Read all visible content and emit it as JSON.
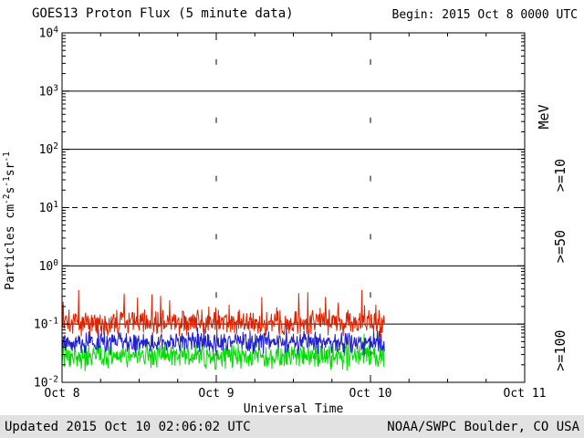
{
  "header": {
    "title": "GOES13 Proton Flux (5 minute data)",
    "begin": "Begin: 2015 Oct 8 0000 UTC"
  },
  "footer": {
    "updated": "Updated 2015 Oct 10 02:06:02 UTC",
    "source": "NOAA/SWPC Boulder, CO USA"
  },
  "chart_data": {
    "type": "line",
    "title": "GOES13 Proton Flux (5 minute data)",
    "xlabel": "Universal Time",
    "ylabel_parts": [
      "Particles  cm",
      "-2",
      "s",
      "-1",
      "sr",
      "-1"
    ],
    "units_label": "MeV",
    "x_axis": {
      "days": 3,
      "tick_labels": [
        "Oct 8",
        "Oct 9",
        "Oct 10",
        "Oct 11"
      ],
      "minor_tick_hours": 6
    },
    "y_axis": {
      "log_min": -2,
      "log_max": 4,
      "tick_exponents": [
        "4",
        "3",
        "2",
        "1",
        "0",
        "-1",
        "-2"
      ]
    },
    "hlines": {
      "solid_exponents": [
        3,
        2,
        0,
        -1
      ],
      "dashed_exponents": [
        1
      ]
    },
    "vgrid_days": [
      1,
      2
    ],
    "cadence_minutes": 5,
    "data_start_day": 0,
    "data_end_day": 2.09,
    "series": [
      {
        "name": ">=100",
        "color": "#00dd00",
        "baseline_log10": -1.55,
        "noise_log10": 0.26,
        "spike_prob": 0.02,
        "spike_log10": 0.2,
        "clip_log10": [
          -1.97,
          -1.15
        ]
      },
      {
        "name": ">=50",
        "color": "#2222cc",
        "baseline_log10": -1.32,
        "noise_log10": 0.22,
        "spike_prob": 0.02,
        "spike_log10": 0.2,
        "clip_log10": [
          -1.78,
          -0.98
        ]
      },
      {
        "name": ">=10",
        "color": "#dd2200",
        "baseline_log10": -0.97,
        "noise_log10": 0.27,
        "spike_prob": 0.05,
        "spike_log10": 0.5,
        "clip_log10": [
          -1.22,
          -0.38
        ]
      }
    ]
  }
}
